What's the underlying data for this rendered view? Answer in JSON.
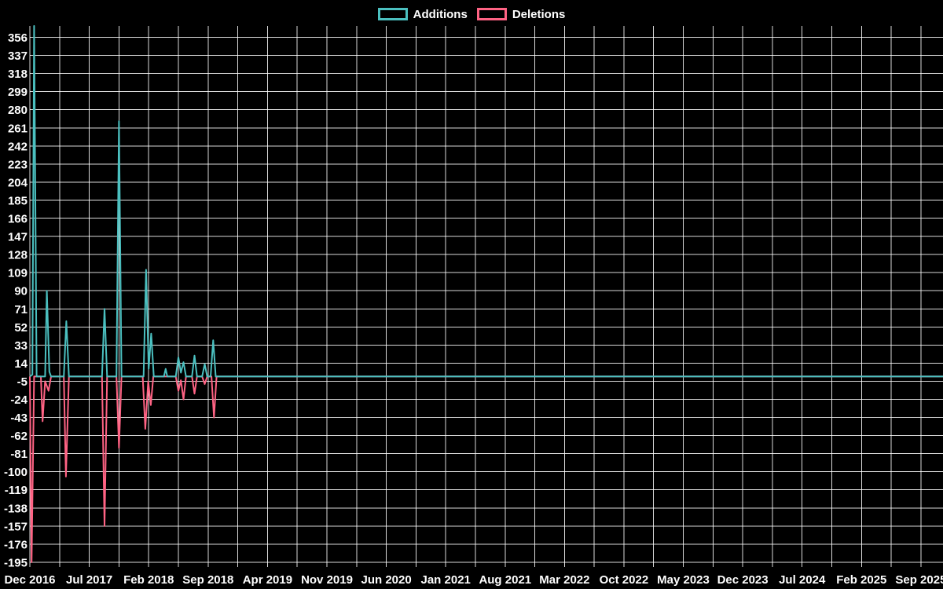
{
  "chart_data": {
    "type": "line",
    "title": "",
    "background": "#000000",
    "grid_color": "rgba(255,255,255,0.85)",
    "text_color": "#ffffff",
    "legend_position": "top-center",
    "legend": [
      {
        "label": "Additions",
        "color": "#4bc0c0"
      },
      {
        "label": "Deletions",
        "color": "#ff6384"
      }
    ],
    "x_unit": "months since Dec 2016",
    "x_range": [
      0,
      107.6
    ],
    "y_range": [
      -200,
      368
    ],
    "x_grid_step": 3.5,
    "x_tick_positions": [
      0,
      7,
      14,
      21,
      28,
      35,
      42,
      49,
      56,
      63,
      70,
      77,
      84,
      91,
      98,
      105
    ],
    "x_tick_labels": [
      "Dec 2016",
      "Jul 2017",
      "Feb 2018",
      "Sep 2018",
      "Apr 2019",
      "Nov 2019",
      "Jun 2020",
      "Jan 2021",
      "Aug 2021",
      "Mar 2022",
      "Oct 2022",
      "May 2023",
      "Dec 2023",
      "Jul 2024",
      "Feb 2025",
      "Sep 2025"
    ],
    "y_ticks": [
      356,
      337,
      318,
      299,
      280,
      261,
      242,
      223,
      204,
      185,
      166,
      147,
      128,
      109,
      90,
      71,
      52,
      33,
      14,
      -5,
      -24,
      -43,
      -62,
      -81,
      -100,
      -119,
      -138,
      -157,
      -176,
      -195
    ],
    "series": [
      {
        "name": "Additions",
        "color": "#4bc0c0",
        "points": [
          [
            0,
            0
          ],
          [
            0.3,
            2
          ],
          [
            0.5,
            368
          ],
          [
            0.8,
            0
          ],
          [
            1.8,
            0
          ],
          [
            2.0,
            90
          ],
          [
            2.3,
            5
          ],
          [
            2.5,
            0
          ],
          [
            4.0,
            0
          ],
          [
            4.3,
            58
          ],
          [
            4.6,
            0
          ],
          [
            8.5,
            0
          ],
          [
            8.8,
            71
          ],
          [
            9.1,
            0
          ],
          [
            10.2,
            0
          ],
          [
            10.5,
            268
          ],
          [
            10.8,
            0
          ],
          [
            13.4,
            0
          ],
          [
            13.7,
            112
          ],
          [
            14.0,
            8
          ],
          [
            14.3,
            45
          ],
          [
            14.6,
            0
          ],
          [
            15.8,
            0
          ],
          [
            16.0,
            8
          ],
          [
            16.2,
            0
          ],
          [
            17.2,
            0
          ],
          [
            17.5,
            20
          ],
          [
            17.8,
            4
          ],
          [
            18.1,
            15
          ],
          [
            18.4,
            0
          ],
          [
            19.1,
            0
          ],
          [
            19.4,
            22
          ],
          [
            19.7,
            0
          ],
          [
            20.3,
            0
          ],
          [
            20.6,
            13
          ],
          [
            20.9,
            0
          ],
          [
            21.3,
            0
          ],
          [
            21.6,
            38
          ],
          [
            21.9,
            0
          ],
          [
            107.6,
            0
          ]
        ]
      },
      {
        "name": "Deletions",
        "color": "#ff6384",
        "points": [
          [
            0,
            0
          ],
          [
            0.2,
            -195
          ],
          [
            0.5,
            0
          ],
          [
            1.3,
            0
          ],
          [
            1.5,
            -47
          ],
          [
            1.8,
            -5
          ],
          [
            2.2,
            -15
          ],
          [
            2.5,
            0
          ],
          [
            4.0,
            0
          ],
          [
            4.25,
            -105
          ],
          [
            4.6,
            0
          ],
          [
            8.5,
            0
          ],
          [
            8.8,
            -157
          ],
          [
            9.1,
            0
          ],
          [
            10.2,
            0
          ],
          [
            10.5,
            -75
          ],
          [
            10.8,
            0
          ],
          [
            13.3,
            0
          ],
          [
            13.6,
            -55
          ],
          [
            13.95,
            -5
          ],
          [
            14.25,
            -30
          ],
          [
            14.55,
            0
          ],
          [
            17.2,
            0
          ],
          [
            17.5,
            -15
          ],
          [
            17.8,
            -4
          ],
          [
            18.1,
            -24
          ],
          [
            18.4,
            0
          ],
          [
            19.1,
            0
          ],
          [
            19.4,
            -18
          ],
          [
            19.7,
            0
          ],
          [
            20.3,
            0
          ],
          [
            20.6,
            -8
          ],
          [
            20.9,
            0
          ],
          [
            21.4,
            0
          ],
          [
            21.7,
            -43
          ],
          [
            22.0,
            0
          ],
          [
            107.6,
            0
          ]
        ]
      }
    ]
  }
}
